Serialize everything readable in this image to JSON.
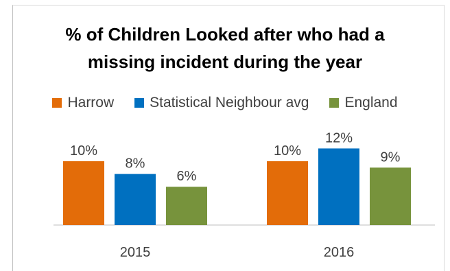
{
  "colors": {
    "Harrow": "#E36C09",
    "Statistical Neighbour avg": "#0070C0",
    "England": "#77933C"
  },
  "chart_data": {
    "type": "bar",
    "title": "% of Children Looked after who had a\nmissing incident during the year",
    "xlabel": "",
    "ylabel": "",
    "ylim": [
      0,
      12
    ],
    "grid": false,
    "legend_position": "top",
    "categories": [
      "2015",
      "2016"
    ],
    "series": [
      {
        "name": "Harrow",
        "values": [
          10,
          10
        ],
        "labels": [
          "10%",
          "10%"
        ]
      },
      {
        "name": "Statistical Neighbour avg",
        "values": [
          8,
          12
        ],
        "labels": [
          "8%",
          "12%"
        ]
      },
      {
        "name": "England",
        "values": [
          6,
          9
        ],
        "labels": [
          "6%",
          "9%"
        ]
      }
    ]
  }
}
